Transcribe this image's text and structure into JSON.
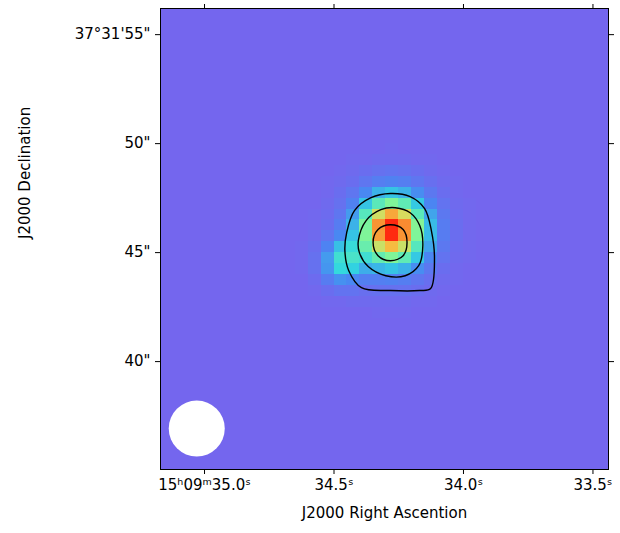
{
  "chart_data": {
    "type": "heatmap",
    "xlabel": "J2000 Right Ascention",
    "ylabel": "J2000 Declination",
    "xlim": [
      35.17,
      33.44
    ],
    "ylim": [
      35.05,
      56.2
    ],
    "xticks": [
      {
        "value": 35.0,
        "label": "15ʰ09ᵐ35.0ˢ"
      },
      {
        "value": 34.5,
        "label": "34.5ˢ"
      },
      {
        "value": 34.0,
        "label": "34.0ˢ"
      },
      {
        "value": 33.5,
        "label": "33.5ˢ"
      }
    ],
    "yticks": [
      {
        "value": 40,
        "label": "40\""
      },
      {
        "value": 45,
        "label": "45\""
      },
      {
        "value": 50,
        "label": "50\""
      },
      {
        "value": 55,
        "label": "37°31'55\""
      }
    ],
    "image": {
      "ra_edges": [
        35.17,
        34.95,
        34.7,
        34.65,
        34.6,
        34.55,
        34.5,
        34.45,
        34.4,
        34.35,
        34.3,
        34.25,
        34.2,
        34.15,
        34.1,
        34.05,
        34.0,
        33.95,
        33.9,
        33.7,
        33.44
      ],
      "dec_edges": [
        35.05,
        38,
        41,
        41.5,
        42,
        42.5,
        43,
        43.5,
        44,
        44.5,
        45,
        45.5,
        46,
        46.5,
        47,
        47.5,
        48,
        48.5,
        49,
        49.5,
        50,
        53,
        56.2
      ],
      "values": [
        [
          0.1,
          0.1,
          0.1,
          0.1,
          0.1,
          0.1,
          0.1,
          0.1,
          0.1,
          0.1,
          0.1,
          0.1,
          0.1,
          0.1,
          0.1,
          0.1,
          0.1,
          0.1,
          0.1,
          0.1
        ],
        [
          0.1,
          0.1,
          0.1,
          0.1,
          0.1,
          0.1,
          0.1,
          0.1,
          0.1,
          0.1,
          0.1,
          0.1,
          0.1,
          0.1,
          0.1,
          0.1,
          0.1,
          0.1,
          0.1,
          0.1
        ],
        [
          0.1,
          0.1,
          0.1,
          0.1,
          0.1,
          0.1,
          0.1,
          0.1,
          0.1,
          0.1,
          0.1,
          0.1,
          0.1,
          0.1,
          0.1,
          0.1,
          0.1,
          0.1,
          0.1,
          0.1
        ],
        [
          0.1,
          0.1,
          0.1,
          0.1,
          0.1,
          0.1,
          0.1,
          0.1,
          0.1,
          0.1,
          0.1,
          0.1,
          0.1,
          0.1,
          0.1,
          0.1,
          0.1,
          0.1,
          0.1,
          0.1
        ],
        [
          0.1,
          0.1,
          0.1,
          0.1,
          0.1,
          0.1,
          0.1,
          0.1,
          0.1,
          0.11,
          0.11,
          0.11,
          0.1,
          0.1,
          0.1,
          0.1,
          0.1,
          0.1,
          0.1,
          0.1
        ],
        [
          0.1,
          0.1,
          0.1,
          0.1,
          0.1,
          0.11,
          0.11,
          0.12,
          0.12,
          0.12,
          0.12,
          0.12,
          0.11,
          0.11,
          0.1,
          0.1,
          0.1,
          0.1,
          0.1,
          0.1
        ],
        [
          0.1,
          0.1,
          0.1,
          0.1,
          0.11,
          0.14,
          0.17,
          0.17,
          0.15,
          0.16,
          0.16,
          0.16,
          0.14,
          0.12,
          0.11,
          0.1,
          0.1,
          0.1,
          0.1,
          0.1
        ],
        [
          0.1,
          0.1,
          0.1,
          0.1,
          0.13,
          0.22,
          0.3,
          0.28,
          0.24,
          0.24,
          0.25,
          0.23,
          0.19,
          0.15,
          0.12,
          0.11,
          0.1,
          0.1,
          0.1,
          0.1
        ],
        [
          0.1,
          0.1,
          0.1,
          0.11,
          0.16,
          0.31,
          0.46,
          0.44,
          0.36,
          0.38,
          0.41,
          0.37,
          0.29,
          0.2,
          0.14,
          0.11,
          0.1,
          0.1,
          0.1,
          0.1
        ],
        [
          0.1,
          0.1,
          0.1,
          0.11,
          0.16,
          0.32,
          0.49,
          0.51,
          0.49,
          0.57,
          0.63,
          0.56,
          0.42,
          0.27,
          0.17,
          0.12,
          0.11,
          0.1,
          0.1,
          0.1
        ],
        [
          0.1,
          0.1,
          0.1,
          0.11,
          0.14,
          0.26,
          0.4,
          0.47,
          0.58,
          0.74,
          0.83,
          0.74,
          0.54,
          0.34,
          0.2,
          0.13,
          0.11,
          0.1,
          0.1,
          0.1
        ],
        [
          0.1,
          0.1,
          0.1,
          0.1,
          0.12,
          0.18,
          0.28,
          0.41,
          0.63,
          0.86,
          0.98,
          0.87,
          0.63,
          0.39,
          0.22,
          0.14,
          0.11,
          0.1,
          0.1,
          0.1
        ],
        [
          0.1,
          0.1,
          0.1,
          0.1,
          0.11,
          0.14,
          0.22,
          0.37,
          0.62,
          0.87,
          0.98,
          0.88,
          0.64,
          0.39,
          0.22,
          0.14,
          0.11,
          0.1,
          0.1,
          0.1
        ],
        [
          0.1,
          0.1,
          0.1,
          0.1,
          0.11,
          0.13,
          0.19,
          0.32,
          0.54,
          0.75,
          0.85,
          0.76,
          0.55,
          0.34,
          0.2,
          0.13,
          0.11,
          0.1,
          0.1,
          0.1
        ],
        [
          0.1,
          0.1,
          0.1,
          0.1,
          0.1,
          0.12,
          0.16,
          0.25,
          0.41,
          0.55,
          0.63,
          0.56,
          0.42,
          0.27,
          0.17,
          0.12,
          0.11,
          0.1,
          0.1,
          0.1
        ],
        [
          0.1,
          0.1,
          0.1,
          0.1,
          0.1,
          0.11,
          0.14,
          0.19,
          0.28,
          0.37,
          0.41,
          0.37,
          0.29,
          0.2,
          0.14,
          0.11,
          0.1,
          0.1,
          0.1,
          0.1
        ],
        [
          0.1,
          0.1,
          0.1,
          0.1,
          0.1,
          0.11,
          0.12,
          0.14,
          0.19,
          0.23,
          0.25,
          0.23,
          0.19,
          0.15,
          0.12,
          0.11,
          0.1,
          0.1,
          0.1,
          0.1
        ],
        [
          0.1,
          0.1,
          0.1,
          0.1,
          0.1,
          0.1,
          0.11,
          0.12,
          0.14,
          0.16,
          0.17,
          0.16,
          0.14,
          0.12,
          0.11,
          0.1,
          0.1,
          0.1,
          0.1,
          0.1
        ],
        [
          0.1,
          0.1,
          0.1,
          0.1,
          0.1,
          0.1,
          0.1,
          0.11,
          0.11,
          0.12,
          0.12,
          0.12,
          0.11,
          0.11,
          0.1,
          0.1,
          0.1,
          0.1,
          0.1,
          0.1
        ],
        [
          0.1,
          0.1,
          0.1,
          0.1,
          0.1,
          0.1,
          0.1,
          0.1,
          0.1,
          0.1,
          0.11,
          0.1,
          0.1,
          0.1,
          0.1,
          0.1,
          0.1,
          0.1,
          0.1,
          0.1
        ],
        [
          0.1,
          0.1,
          0.1,
          0.1,
          0.1,
          0.1,
          0.1,
          0.1,
          0.1,
          0.1,
          0.1,
          0.1,
          0.1,
          0.1,
          0.1,
          0.1,
          0.1,
          0.1,
          0.1,
          0.1
        ],
        [
          0.1,
          0.1,
          0.1,
          0.1,
          0.1,
          0.1,
          0.1,
          0.1,
          0.1,
          0.1,
          0.1,
          0.1,
          0.1,
          0.1,
          0.1,
          0.1,
          0.1,
          0.1,
          0.1,
          0.1
        ]
      ]
    },
    "contours": [
      [
        [
          34.451,
          45.92
        ],
        [
          34.421,
          46.93
        ],
        [
          34.357,
          47.52
        ],
        [
          34.282,
          47.71
        ],
        [
          34.206,
          47.57
        ],
        [
          34.15,
          47.02
        ],
        [
          34.124,
          46.01
        ],
        [
          34.112,
          44.72
        ],
        [
          34.127,
          43.35
        ],
        [
          34.169,
          43.26
        ],
        [
          34.282,
          43.26
        ],
        [
          34.394,
          43.39
        ],
        [
          34.443,
          44.17
        ],
        [
          34.458,
          45.09
        ]
      ],
      [
        [
          34.406,
          45.55
        ],
        [
          34.376,
          46.47
        ],
        [
          34.319,
          46.97
        ],
        [
          34.263,
          47.06
        ],
        [
          34.206,
          46.83
        ],
        [
          34.169,
          46.24
        ],
        [
          34.157,
          45.32
        ],
        [
          34.173,
          44.4
        ],
        [
          34.225,
          43.94
        ],
        [
          34.3,
          43.94
        ],
        [
          34.368,
          44.36
        ],
        [
          34.402,
          45.0
        ]
      ],
      [
        [
          34.349,
          45.46
        ],
        [
          34.33,
          46.06
        ],
        [
          34.282,
          46.28
        ],
        [
          34.233,
          46.06
        ],
        [
          34.218,
          45.46
        ],
        [
          34.233,
          44.86
        ],
        [
          34.282,
          44.63
        ],
        [
          34.33,
          44.86
        ]
      ]
    ],
    "beam": {
      "ra": 35.03,
      "dec": 36.93,
      "diameter_arcsec": 2.57
    }
  }
}
